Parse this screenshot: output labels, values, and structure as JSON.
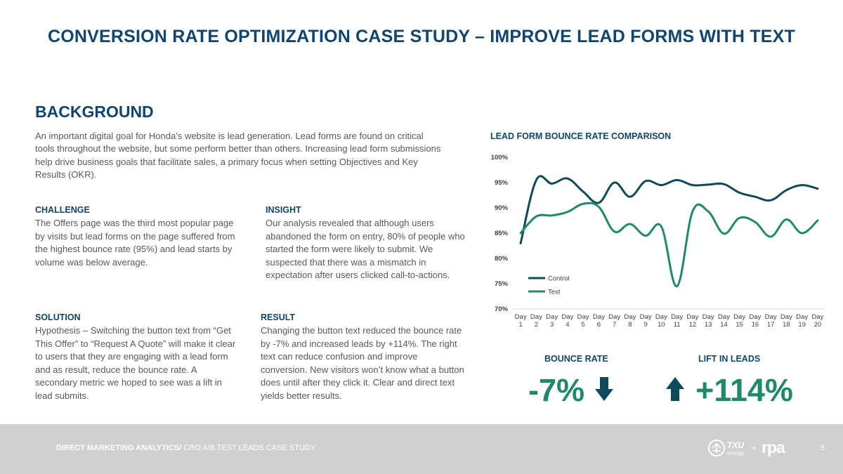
{
  "title": "CONVERSION RATE OPTIMIZATION CASE STUDY – IMPROVE LEAD FORMS WITH TEXT",
  "background": {
    "heading": "BACKGROUND",
    "text": "An important digital goal for Honda’s website is lead generation. Lead forms are found on critical tools throughout the website, but some perform better than others. Increasing lead form submissions help drive business goals that facilitate sales, a primary focus when setting Objectives and Key Results (OKR)."
  },
  "challenge": {
    "heading": "CHALLENGE",
    "text": "The Offers page was the third most popular page by visits but lead forms on the page suffered from the highest bounce rate (95%) and lead starts by volume was below average."
  },
  "insight": {
    "heading": "INSIGHT",
    "text": "Our analysis revealed that although users abandoned the form on entry, 80% of people who started the form were likely to submit. We suspected that there was a mismatch in expectation after users clicked call-to-actions."
  },
  "solution": {
    "heading": "SOLUTION",
    "text": "Hypothesis – Switching the button text from “Get This Offer” to “Request A Quote” will make it clear to users that they are engaging with a lead form and as result, reduce the bounce rate. A secondary metric we hoped to see was a lift in lead submits."
  },
  "result": {
    "heading": "RESULT",
    "text": "Changing the button text reduced the bounce rate by -7% and increased leads by +114%. The right text can reduce confusion and improve conversion. New visitors won’t know what a button does until after they click it. Clear and direct text yields better results."
  },
  "chart_title": "LEAD FORM BOUNCE RATE COMPARISON",
  "chart_data": {
    "type": "line",
    "title": "LEAD FORM BOUNCE RATE COMPARISON",
    "categories": [
      "Day 1",
      "Day 2",
      "Day 3",
      "Day 4",
      "Day 5",
      "Day 6",
      "Day 7",
      "Day 8",
      "Day 9",
      "Day 10",
      "Day 11",
      "Day 12",
      "Day 13",
      "Day 14",
      "Day 15",
      "Day 16",
      "Day 17",
      "Day 18",
      "Day 19",
      "Day 20"
    ],
    "yticks": [
      "70%",
      "75%",
      "80%",
      "85%",
      "90%",
      "95%",
      "100%"
    ],
    "ylim": [
      70,
      100
    ],
    "legend": "inside-bottom-left",
    "grid": false,
    "series": [
      {
        "name": "Control",
        "color": "#0d4a5a",
        "values": [
          83,
          95.5,
          94.8,
          95.8,
          93.2,
          91,
          95,
          92.2,
          95.3,
          94.5,
          95.5,
          94.5,
          94.6,
          94.7,
          93,
          92.2,
          91.5,
          93.5,
          94.5,
          93.8
        ]
      },
      {
        "name": "Test",
        "color": "#1e8a6a",
        "values": [
          85,
          88.3,
          88.5,
          89.2,
          90.8,
          90.2,
          85.3,
          86.8,
          84.5,
          86.3,
          74.5,
          89.3,
          89.3,
          84.9,
          88,
          87.2,
          84.3,
          87.7,
          85,
          87.5
        ]
      }
    ]
  },
  "bounce_rate": {
    "label": "BOUNCE RATE",
    "value": "-7%"
  },
  "lift_leads": {
    "label": "LIFT IN LEADS",
    "value": "+114%"
  },
  "colors": {
    "navy": "#0f4570",
    "green": "#1e8a6a",
    "control": "#0d4a5a",
    "footer": "#d0d0d0"
  },
  "footer": {
    "bold": "DIRECT MARKETING ANALYTICS/",
    "text": " CRO A/B TEST LEADS CASE STUDY",
    "page": "5"
  },
  "logos": {
    "txu": "TXU energy",
    "plus": "+",
    "rpa": "rpa"
  }
}
